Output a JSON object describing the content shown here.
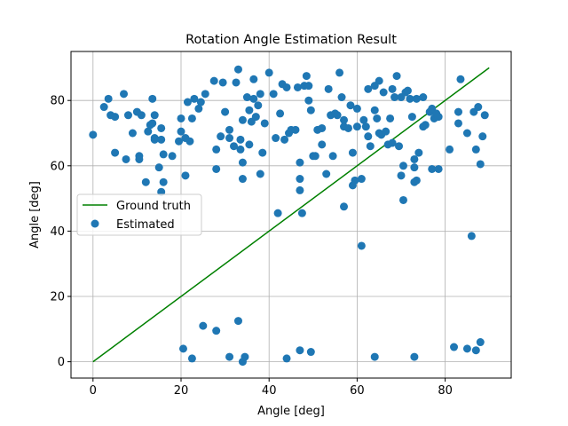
{
  "chart_data": {
    "type": "scatter",
    "title": "Rotation Angle Estimation Result",
    "xlabel": "Angle [deg]",
    "ylabel": "Angle [deg]",
    "xlim": [
      -5,
      95
    ],
    "ylim": [
      -5,
      95
    ],
    "xticks": [
      0,
      20,
      40,
      60,
      80
    ],
    "yticks": [
      0,
      20,
      40,
      60,
      80
    ],
    "grid": true,
    "legend_position": "center-left",
    "series": [
      {
        "name": "Ground truth",
        "kind": "line",
        "color": "#008000",
        "x": [
          0,
          90
        ],
        "y": [
          0,
          90
        ]
      },
      {
        "name": "Estimated",
        "kind": "scatter",
        "color": "#1f77b4",
        "points": [
          [
            0,
            69.5
          ],
          [
            2.5,
            78
          ],
          [
            3.5,
            80.5
          ],
          [
            4,
            75.5
          ],
          [
            5,
            75
          ],
          [
            5,
            64
          ],
          [
            7,
            82
          ],
          [
            7.5,
            62
          ],
          [
            8,
            75.5
          ],
          [
            9,
            70
          ],
          [
            10,
            76.5
          ],
          [
            10.5,
            63
          ],
          [
            10.5,
            62
          ],
          [
            11,
            75.5
          ],
          [
            12,
            55
          ],
          [
            12.5,
            70.5
          ],
          [
            13,
            72.5
          ],
          [
            13.5,
            73
          ],
          [
            13.5,
            80.5
          ],
          [
            14,
            75.5
          ],
          [
            14,
            68.5
          ],
          [
            14,
            68
          ],
          [
            15,
            59.5
          ],
          [
            15.5,
            71.5
          ],
          [
            15.5,
            68
          ],
          [
            15.5,
            52
          ],
          [
            16,
            55
          ],
          [
            16,
            63.5
          ],
          [
            18,
            63
          ],
          [
            19.5,
            67.5
          ],
          [
            20,
            70.5
          ],
          [
            20,
            74.5
          ],
          [
            21,
            57
          ],
          [
            21,
            68.5
          ],
          [
            21.5,
            79.5
          ],
          [
            22,
            67.5
          ],
          [
            22.5,
            74.5
          ],
          [
            23,
            80.5
          ],
          [
            24,
            77.5
          ],
          [
            24.5,
            79.5
          ],
          [
            25.5,
            82
          ],
          [
            27.5,
            86
          ],
          [
            28,
            65
          ],
          [
            28,
            59
          ],
          [
            29,
            69
          ],
          [
            29.5,
            85.5
          ],
          [
            30,
            76.5
          ],
          [
            31,
            71
          ],
          [
            31,
            68.5
          ],
          [
            32,
            66
          ],
          [
            32.5,
            85.5
          ],
          [
            33,
            89.5
          ],
          [
            33.5,
            68
          ],
          [
            33.5,
            65
          ],
          [
            34,
            74
          ],
          [
            34,
            61
          ],
          [
            34,
            56
          ],
          [
            35,
            81
          ],
          [
            35.5,
            77
          ],
          [
            35.5,
            66.5
          ],
          [
            36,
            73.5
          ],
          [
            36.5,
            80.5
          ],
          [
            36.5,
            86.5
          ],
          [
            37,
            75
          ],
          [
            37.5,
            78.5
          ],
          [
            38,
            57.5
          ],
          [
            38,
            82
          ],
          [
            38.5,
            64
          ],
          [
            39,
            73
          ],
          [
            40,
            88.5
          ],
          [
            41,
            82
          ],
          [
            41.5,
            68.5
          ],
          [
            42,
            45.5
          ],
          [
            42.5,
            76
          ],
          [
            43,
            85
          ],
          [
            43.5,
            68
          ],
          [
            44,
            84
          ],
          [
            44.5,
            70
          ],
          [
            45,
            71
          ],
          [
            46,
            71
          ],
          [
            46.5,
            84
          ],
          [
            47,
            61
          ],
          [
            47,
            52.5
          ],
          [
            47,
            56
          ],
          [
            47.5,
            45.5
          ],
          [
            48,
            84.5
          ],
          [
            48.5,
            87.5
          ],
          [
            49,
            80
          ],
          [
            49,
            84.5
          ],
          [
            49.5,
            77
          ],
          [
            50,
            63
          ],
          [
            50.5,
            63
          ],
          [
            51,
            71
          ],
          [
            52,
            66.5
          ],
          [
            52,
            71.5
          ],
          [
            53,
            57.5
          ],
          [
            53.5,
            83.5
          ],
          [
            54,
            75.5
          ],
          [
            54.5,
            63
          ],
          [
            55,
            76
          ],
          [
            55.5,
            75.5
          ],
          [
            56,
            88.5
          ],
          [
            56.5,
            81
          ],
          [
            57,
            74
          ],
          [
            57,
            72
          ],
          [
            57,
            47.5
          ],
          [
            58,
            71.5
          ],
          [
            58.5,
            78.5
          ],
          [
            59,
            54
          ],
          [
            59,
            64
          ],
          [
            59.5,
            55.5
          ],
          [
            60,
            72
          ],
          [
            60,
            77.5
          ],
          [
            61,
            56
          ],
          [
            61,
            35.5
          ],
          [
            61.5,
            74
          ],
          [
            62,
            72
          ],
          [
            62.5,
            69
          ],
          [
            62.5,
            83.5
          ],
          [
            63,
            66
          ],
          [
            64,
            84.5
          ],
          [
            64,
            77
          ],
          [
            64.5,
            74.5
          ],
          [
            65,
            86
          ],
          [
            65,
            70
          ],
          [
            65.5,
            69.5
          ],
          [
            66,
            82.5
          ],
          [
            66.5,
            70.5
          ],
          [
            67,
            66.5
          ],
          [
            67.5,
            74.5
          ],
          [
            68,
            83.5
          ],
          [
            68,
            67
          ],
          [
            68.5,
            81
          ],
          [
            69,
            87.5
          ],
          [
            69.5,
            66
          ],
          [
            70,
            81
          ],
          [
            70,
            57
          ],
          [
            70.5,
            60
          ],
          [
            70.5,
            49.5
          ],
          [
            71,
            82.5
          ],
          [
            71.5,
            83
          ],
          [
            72,
            80.5
          ],
          [
            72.5,
            75
          ],
          [
            73,
            62
          ],
          [
            73,
            55
          ],
          [
            73,
            59.5
          ],
          [
            73.5,
            80.5
          ],
          [
            73.5,
            55.5
          ],
          [
            74,
            64
          ],
          [
            75,
            81
          ],
          [
            75,
            72
          ],
          [
            75.5,
            72.5
          ],
          [
            76.5,
            76.5
          ],
          [
            77,
            77.5
          ],
          [
            77,
            59
          ],
          [
            77.5,
            74.5
          ],
          [
            78,
            76
          ],
          [
            78.5,
            75
          ],
          [
            78.5,
            59
          ],
          [
            81,
            65
          ],
          [
            83,
            76.5
          ],
          [
            83,
            73
          ],
          [
            83.5,
            86.5
          ],
          [
            85,
            70
          ],
          [
            86,
            38.5
          ],
          [
            86.5,
            76.5
          ],
          [
            87,
            65
          ],
          [
            87.5,
            78
          ],
          [
            88,
            60.5
          ],
          [
            88.5,
            69
          ],
          [
            89,
            75.5
          ],
          [
            20.5,
            4
          ],
          [
            22.5,
            1
          ],
          [
            25,
            11
          ],
          [
            28,
            9.5
          ],
          [
            31,
            1.5
          ],
          [
            33,
            12.5
          ],
          [
            34,
            0
          ],
          [
            34.5,
            1.5
          ],
          [
            44,
            1
          ],
          [
            47,
            3.5
          ],
          [
            49.5,
            3
          ],
          [
            64,
            1.5
          ],
          [
            73,
            1.5
          ],
          [
            82,
            4.5
          ],
          [
            85,
            4
          ],
          [
            87,
            3.5
          ],
          [
            88,
            6
          ]
        ]
      }
    ]
  }
}
